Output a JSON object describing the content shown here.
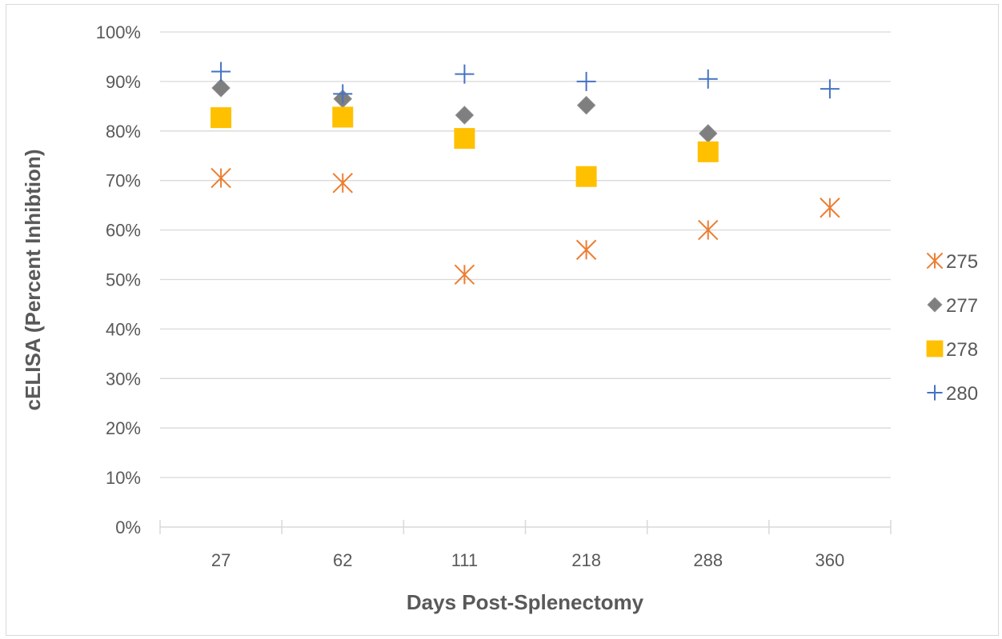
{
  "chart_data": {
    "type": "scatter",
    "title": "",
    "xlabel": "Days Post-Splenectomy",
    "ylabel": "cELISA (Percent Inhibtion)",
    "categories": [
      "27",
      "62",
      "111",
      "218",
      "288",
      "360"
    ],
    "y_ticks": [
      "0%",
      "10%",
      "20%",
      "30%",
      "40%",
      "50%",
      "60%",
      "70%",
      "80%",
      "90%",
      "100%"
    ],
    "ylim": [
      0,
      100
    ],
    "grid": true,
    "legend_position": "right",
    "series": [
      {
        "name": "275",
        "marker": "asterisk",
        "color": "#ED7D31",
        "values": [
          70.5,
          69.5,
          51,
          56,
          60,
          64.5
        ]
      },
      {
        "name": "277",
        "marker": "diamond",
        "color": "#7F7F7F",
        "values": [
          88.7,
          86.5,
          83.2,
          85.2,
          79.5,
          null
        ]
      },
      {
        "name": "278",
        "marker": "square",
        "color": "#FFC000",
        "values": [
          82.7,
          82.8,
          78.5,
          70.8,
          75.8,
          null
        ]
      },
      {
        "name": "280",
        "marker": "plus",
        "color": "#4472C4",
        "values": [
          92,
          87.5,
          91.5,
          90,
          90.5,
          88.5
        ]
      }
    ]
  }
}
